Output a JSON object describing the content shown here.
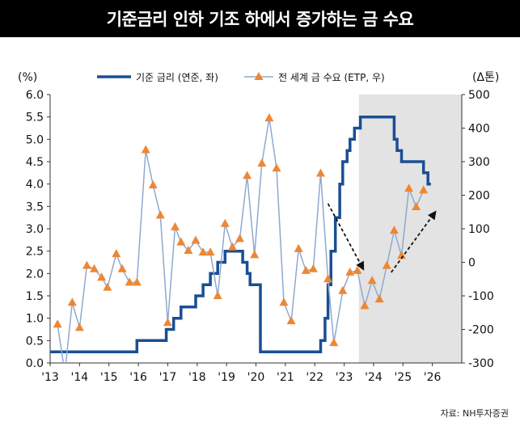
{
  "title": "기준금리 인하 기조 하에서 증가하는 금 수요",
  "source": "자료: NH투자증권",
  "chart_data": {
    "type": "line",
    "left_unit": "(%)",
    "right_unit": "(Δ톤)",
    "legend": [
      "기준 금리 (연준, 좌)",
      "전 세계 금 수요 (ETP, 우)"
    ],
    "left_axis": {
      "min": 0,
      "max": 6,
      "step": 0.5
    },
    "right_axis": {
      "min": -300,
      "max": 500,
      "step": 100
    },
    "x_ticks": [
      "'13",
      "'14",
      "'15",
      "'16",
      "'17",
      "'18",
      "'19",
      "'20",
      "'21",
      "'22",
      "'23",
      "'24",
      "'25",
      "'26"
    ],
    "x_tick_years": [
      2013,
      2014,
      2015,
      2016,
      2017,
      2018,
      2019,
      2020,
      2021,
      2022,
      2023,
      2024,
      2025,
      2026
    ],
    "x_range": [
      2013,
      2027
    ],
    "shaded_region": {
      "from": 2023.5,
      "to": 2027
    },
    "fed_rate": [
      [
        2013.0,
        0.25
      ],
      [
        2015.95,
        0.25
      ],
      [
        2015.95,
        0.5
      ],
      [
        2016.95,
        0.5
      ],
      [
        2016.95,
        0.75
      ],
      [
        2017.2,
        0.75
      ],
      [
        2017.2,
        1.0
      ],
      [
        2017.45,
        1.0
      ],
      [
        2017.45,
        1.25
      ],
      [
        2017.95,
        1.25
      ],
      [
        2017.95,
        1.5
      ],
      [
        2018.2,
        1.5
      ],
      [
        2018.2,
        1.75
      ],
      [
        2018.45,
        1.75
      ],
      [
        2018.45,
        2.0
      ],
      [
        2018.7,
        2.0
      ],
      [
        2018.7,
        2.25
      ],
      [
        2018.95,
        2.25
      ],
      [
        2018.95,
        2.5
      ],
      [
        2019.55,
        2.5
      ],
      [
        2019.55,
        2.25
      ],
      [
        2019.7,
        2.25
      ],
      [
        2019.7,
        2.0
      ],
      [
        2019.8,
        2.0
      ],
      [
        2019.8,
        1.75
      ],
      [
        2020.15,
        1.75
      ],
      [
        2020.15,
        0.25
      ],
      [
        2022.2,
        0.25
      ],
      [
        2022.2,
        0.5
      ],
      [
        2022.35,
        0.5
      ],
      [
        2022.35,
        1.0
      ],
      [
        2022.45,
        1.0
      ],
      [
        2022.45,
        1.75
      ],
      [
        2022.55,
        1.75
      ],
      [
        2022.55,
        2.5
      ],
      [
        2022.7,
        2.5
      ],
      [
        2022.7,
        3.25
      ],
      [
        2022.85,
        3.25
      ],
      [
        2022.85,
        4.0
      ],
      [
        2022.95,
        4.0
      ],
      [
        2022.95,
        4.5
      ],
      [
        2023.1,
        4.5
      ],
      [
        2023.1,
        4.75
      ],
      [
        2023.2,
        4.75
      ],
      [
        2023.2,
        5.0
      ],
      [
        2023.35,
        5.0
      ],
      [
        2023.35,
        5.25
      ],
      [
        2023.55,
        5.25
      ],
      [
        2023.55,
        5.5
      ],
      [
        2024.7,
        5.5
      ],
      [
        2024.7,
        5.0
      ],
      [
        2024.8,
        5.0
      ],
      [
        2024.8,
        4.75
      ],
      [
        2024.95,
        4.75
      ],
      [
        2024.95,
        4.5
      ],
      [
        2025.7,
        4.5
      ],
      [
        2025.7,
        4.25
      ],
      [
        2025.85,
        4.25
      ],
      [
        2025.85,
        4.0
      ],
      [
        2025.95,
        4.0
      ]
    ],
    "etp_demand": [
      [
        2013.25,
        -185
      ],
      [
        2013.5,
        -330
      ],
      [
        2013.75,
        -120
      ],
      [
        2014.0,
        -195
      ],
      [
        2014.25,
        -10
      ],
      [
        2014.5,
        -20
      ],
      [
        2014.75,
        -45
      ],
      [
        2014.95,
        -75
      ],
      [
        2015.25,
        25
      ],
      [
        2015.45,
        -20
      ],
      [
        2015.7,
        -60
      ],
      [
        2015.95,
        -60
      ],
      [
        2016.25,
        335
      ],
      [
        2016.5,
        230
      ],
      [
        2016.75,
        140
      ],
      [
        2017.0,
        -180
      ],
      [
        2017.25,
        105
      ],
      [
        2017.45,
        60
      ],
      [
        2017.7,
        35
      ],
      [
        2017.95,
        65
      ],
      [
        2018.2,
        30
      ],
      [
        2018.45,
        30
      ],
      [
        2018.7,
        -100
      ],
      [
        2018.95,
        115
      ],
      [
        2019.2,
        45
      ],
      [
        2019.45,
        70
      ],
      [
        2019.7,
        258
      ],
      [
        2019.95,
        22
      ],
      [
        2020.2,
        295
      ],
      [
        2020.45,
        430
      ],
      [
        2020.7,
        280
      ],
      [
        2020.95,
        -120
      ],
      [
        2021.2,
        -175
      ],
      [
        2021.45,
        40
      ],
      [
        2021.7,
        -25
      ],
      [
        2021.95,
        -20
      ],
      [
        2022.2,
        265
      ],
      [
        2022.45,
        -50
      ],
      [
        2022.65,
        -240
      ],
      [
        2022.95,
        -85
      ],
      [
        2023.2,
        -30
      ],
      [
        2023.45,
        -25
      ],
      [
        2023.7,
        -130
      ],
      [
        2023.95,
        -55
      ],
      [
        2024.2,
        -110
      ],
      [
        2024.45,
        -10
      ],
      [
        2024.7,
        95
      ],
      [
        2024.95,
        20
      ],
      [
        2025.2,
        220
      ],
      [
        2025.45,
        165
      ],
      [
        2025.7,
        215
      ]
    ],
    "annotations": [
      {
        "type": "arrow",
        "from": [
          2022.45,
          175
        ],
        "to": [
          2023.65,
          -20
        ]
      },
      {
        "type": "arrow",
        "from": [
          2024.6,
          -30
        ],
        "to": [
          2026.1,
          150
        ]
      }
    ]
  },
  "colors": {
    "fed_line": "#1a4e93",
    "etp_line": "#8ea9cf",
    "etp_marker": "#ee8733",
    "shade": "#e3e3e3",
    "axis": "#333333"
  }
}
